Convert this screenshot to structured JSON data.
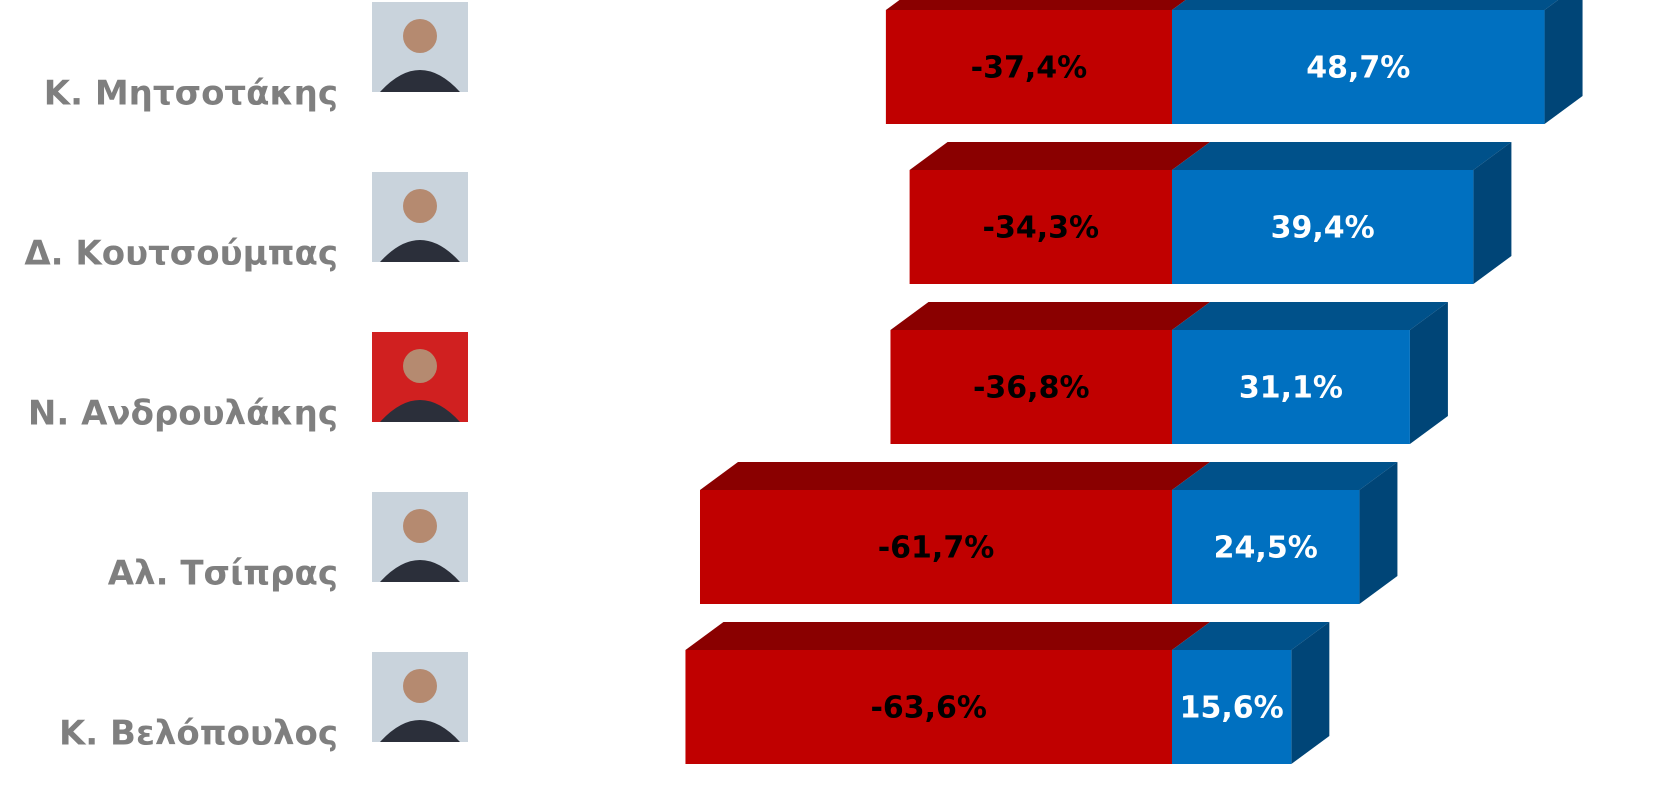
{
  "chart_data": {
    "type": "diverging-bar-3d",
    "categories": [
      "Κ. Μητσοτάκης",
      "Δ. Κουτσούμπας",
      "Ν. Ανδρουλάκης",
      "Αλ. Τσίπρας",
      "Κ. Βελόπουλος"
    ],
    "series": [
      {
        "color": "#c00000",
        "values": [
          -37.4,
          -34.3,
          -36.8,
          -61.7,
          -63.6
        ],
        "value_labels": [
          "-37,4%",
          "-34,3%",
          "-36,8%",
          "-61,7%",
          "-63,6%"
        ]
      },
      {
        "color": "#0070c0",
        "values": [
          48.7,
          39.4,
          31.1,
          24.5,
          15.6
        ],
        "value_labels": [
          "48,7%",
          "39,4%",
          "31,1%",
          "24,5%",
          "15,6%"
        ]
      }
    ]
  }
}
